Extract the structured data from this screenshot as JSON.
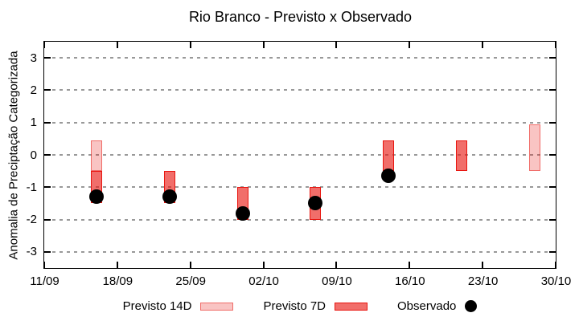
{
  "chart_data": {
    "type": "bar",
    "subtype": "floating-range-bars-with-scatter-observations",
    "title": "Rio Branco - Previsto x Observado",
    "ylabel": "Anomalia de Preciptação Categorizada",
    "ylim": [
      -3.5,
      3.5
    ],
    "yticks": [
      3,
      2,
      1,
      0,
      -1,
      -2,
      -3
    ],
    "grid": "horizontal-dashed",
    "legend_position": "bottom",
    "x_axis": {
      "tick_labels": [
        "11/09",
        "18/09",
        "25/09",
        "02/10",
        "09/10",
        "16/10",
        "23/10",
        "30/10"
      ],
      "tick_interval_days": 7,
      "total_days": 49
    },
    "legend": {
      "previsto14": "Previsto 14D",
      "previsto7": "Previsto 7D",
      "observado": "Observado"
    },
    "series": {
      "previsto14": {
        "name": "Previsto 14D",
        "type": "range-bar",
        "points": [
          {
            "x_day": 5,
            "low": -0.5,
            "high": 0.45
          },
          {
            "x_day": 47,
            "low": -0.5,
            "high": 0.95
          }
        ]
      },
      "previsto7": {
        "name": "Previsto 7D",
        "type": "range-bar",
        "points": [
          {
            "x_day": 5,
            "low": -1.5,
            "high": -0.5
          },
          {
            "x_day": 12,
            "low": -1.5,
            "high": -0.5
          },
          {
            "x_day": 19,
            "low": -2.0,
            "high": -1.0
          },
          {
            "x_day": 26,
            "low": -2.0,
            "high": -1.0
          },
          {
            "x_day": 33,
            "low": -0.5,
            "high": 0.45
          },
          {
            "x_day": 40,
            "low": -0.5,
            "high": 0.45
          }
        ]
      },
      "observado": {
        "name": "Observado",
        "type": "scatter",
        "points": [
          {
            "x_day": 5,
            "y": -1.3
          },
          {
            "x_day": 12,
            "y": -1.3
          },
          {
            "x_day": 19,
            "y": -1.8
          },
          {
            "x_day": 26,
            "y": -1.5
          },
          {
            "x_day": 33,
            "y": -0.65
          }
        ]
      }
    }
  },
  "colors": {
    "previsto14_fill": "rgba(232,21,15,0.25)",
    "previsto14_border": "rgba(232,21,15,0.5)",
    "previsto7_fill": "rgba(232,21,15,0.62)",
    "previsto7_border": "#e8150f",
    "observado": "#000000",
    "grid": "#999999",
    "axis": "#000000"
  }
}
